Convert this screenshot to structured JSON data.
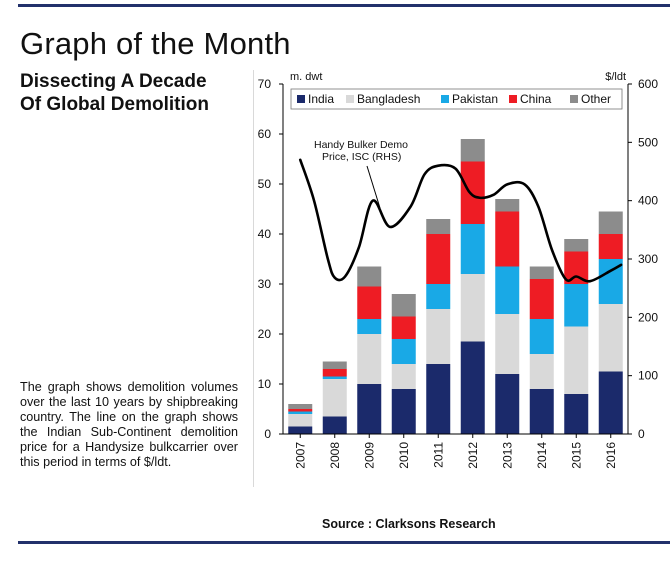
{
  "page": {
    "title": "Graph of the Month",
    "headline_line1": "Dissecting A Decade",
    "headline_line2": "Of Global Demolition",
    "description": "The graph shows demolition volumes over the last 10 years by shipbreaking country. The line on the graph shows the Indian Sub-Continent demolition price for a Handysize bulkcarrier over this period in terms of $/ldt.",
    "source": "Source : Clarksons Research"
  },
  "colors": {
    "rule": "#22316b",
    "India": "#1b2a6b",
    "Bangladesh": "#d9d9d9",
    "Pakistan": "#19a9e6",
    "China": "#ee1c24",
    "Other": "#8c8c8c",
    "line": "#000000"
  },
  "chart_data": {
    "type": "bar",
    "stacked": true,
    "categories": [
      "2007",
      "2008",
      "2009",
      "2010",
      "2011",
      "2012",
      "2013",
      "2014",
      "2015",
      "2016"
    ],
    "series": [
      {
        "name": "India",
        "values": [
          1.5,
          3.5,
          10,
          9,
          14,
          18.5,
          12,
          9,
          8,
          12.5
        ]
      },
      {
        "name": "Bangladesh",
        "values": [
          2.5,
          7.5,
          10,
          5,
          11,
          13.5,
          12,
          7,
          13.5,
          13.5
        ]
      },
      {
        "name": "Pakistan",
        "values": [
          0.5,
          0.5,
          3,
          5,
          5,
          10,
          9.5,
          7,
          8.5,
          9
        ]
      },
      {
        "name": "China",
        "values": [
          0.5,
          1.5,
          6.5,
          4.5,
          10,
          12.5,
          11,
          8,
          6.5,
          5
        ]
      },
      {
        "name": "Other",
        "values": [
          1,
          1.5,
          4,
          4.5,
          3,
          4.5,
          2.5,
          2.5,
          2.5,
          4.5
        ]
      }
    ],
    "line_series": {
      "name": "Handy Bulker Demo Price, ISC (RHS)",
      "label_line1": "Handy Bulker Demo",
      "label_line2": "Price, ISC (RHS)",
      "x": [
        2007.0,
        2007.4,
        2007.8,
        2008.0,
        2008.3,
        2008.7,
        2009.1,
        2009.6,
        2010.2,
        2010.6,
        2011.0,
        2011.5,
        2011.9,
        2012.2,
        2012.6,
        2013.0,
        2013.5,
        2013.9,
        2014.3,
        2014.7,
        2015.0,
        2015.4,
        2016.0,
        2016.3
      ],
      "y": [
        470,
        400,
        300,
        268,
        270,
        320,
        400,
        355,
        390,
        445,
        460,
        455,
        415,
        405,
        410,
        428,
        428,
        390,
        315,
        265,
        270,
        262,
        280,
        290
      ]
    },
    "left_axis": {
      "label": "m. dwt",
      "ylim": [
        0,
        70
      ],
      "ticks": [
        0,
        10,
        20,
        30,
        40,
        50,
        60,
        70
      ]
    },
    "right_axis": {
      "label": "$/ldt",
      "ylim": [
        0,
        600
      ],
      "ticks": [
        0,
        100,
        200,
        300,
        400,
        500,
        600
      ]
    },
    "legend": {
      "position": "top-left",
      "entries": [
        "India",
        "Bangladesh",
        "Pakistan",
        "China",
        "Other"
      ]
    },
    "grid": false
  }
}
